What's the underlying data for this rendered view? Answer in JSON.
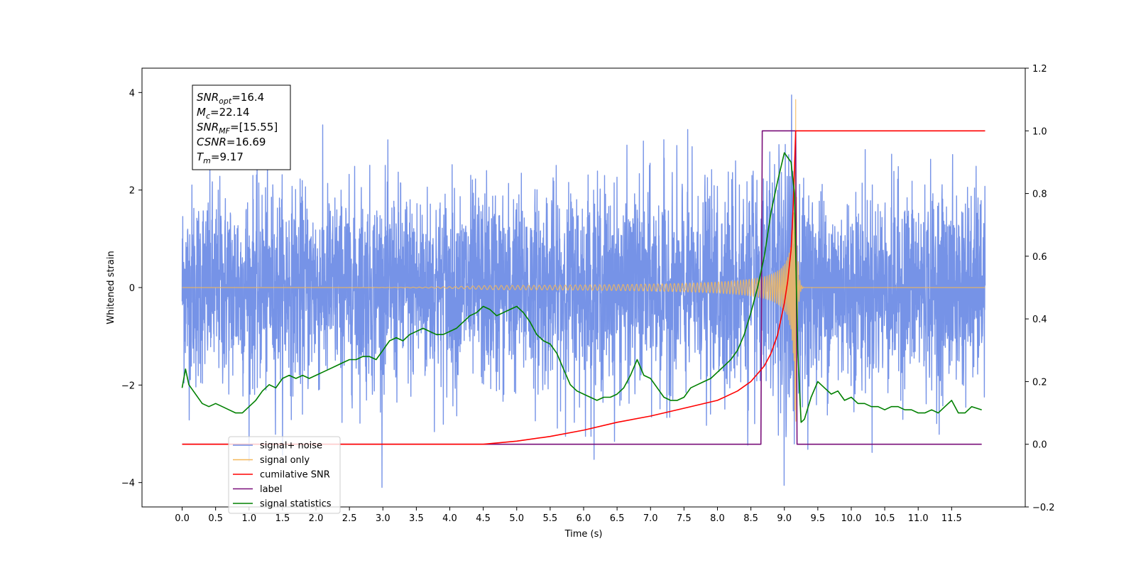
{
  "chart_data": {
    "type": "line",
    "xlabel": "Time (s)",
    "ylabel": "Whitened strain",
    "xlim": [
      -0.6,
      12.6
    ],
    "ylim": [
      -4.5,
      4.5
    ],
    "ylim_right": [
      -0.2,
      1.2
    ],
    "x_ticks": [
      "0.0",
      "0.5",
      "1.0",
      "1.5",
      "2.0",
      "2.5",
      "3.0",
      "3.5",
      "4.0",
      "4.5",
      "5.0",
      "5.5",
      "6.0",
      "6.5",
      "7.0",
      "7.5",
      "8.0",
      "8.5",
      "9.0",
      "9.5",
      "10.0",
      "10.5",
      "11.0",
      "11.5"
    ],
    "y_ticks_left": [
      "4",
      "2",
      "0",
      "−2",
      "−4"
    ],
    "y_ticks_right": [
      "1.2",
      "1.0",
      "0.8",
      "0.6",
      "0.4",
      "0.2",
      "0.0",
      "−0.2"
    ],
    "legend_position": "lower-left",
    "annotation": {
      "lines": [
        {
          "sym": "SNR",
          "sub": "opt",
          "val": "=16.4"
        },
        {
          "sym": "M",
          "sub": "c",
          "val": "=22.14"
        },
        {
          "sym": "SNR",
          "sub": "MF",
          "val": "=[15.55]"
        },
        {
          "sym": "CSNR",
          "sub": "",
          "val": "=16.69"
        },
        {
          "sym": "T",
          "sub": "m",
          "val": "=9.17"
        }
      ]
    },
    "series": [
      {
        "name": "signal+ noise",
        "color": "#6f8de6",
        "axis": "left",
        "kind": "noise",
        "x_range": [
          0.0,
          12.0
        ],
        "amplitude_sigma": 1.0,
        "peak_range": [
          -4.1,
          4.1
        ]
      },
      {
        "name": "signal only",
        "color": "#f5b85a",
        "axis": "left",
        "kind": "chirp",
        "x_range": [
          0.0,
          12.0
        ],
        "merger_time": 9.17,
        "peak_amplitude": 4.0,
        "ringdown_amplitude": -3.4
      },
      {
        "name": "cumilative SNR",
        "color": "#ff0000",
        "axis": "right",
        "x": [
          0.0,
          4.5,
          5.0,
          5.5,
          6.0,
          6.5,
          7.0,
          7.5,
          8.0,
          8.3,
          8.5,
          8.7,
          8.8,
          8.9,
          9.0,
          9.05,
          9.1,
          9.13,
          9.15,
          9.17,
          9.2,
          12.0
        ],
        "y": [
          0.0,
          0.0,
          0.01,
          0.025,
          0.045,
          0.07,
          0.09,
          0.115,
          0.14,
          0.17,
          0.2,
          0.25,
          0.29,
          0.35,
          0.45,
          0.52,
          0.62,
          0.75,
          0.88,
          1.0,
          1.0,
          1.0
        ]
      },
      {
        "name": "label",
        "color": "#7a0f7a",
        "axis": "right",
        "x": [
          0.0,
          8.65,
          8.67,
          9.17,
          9.19,
          11.95
        ],
        "y": [
          0.0,
          0.0,
          1.0,
          1.0,
          0.0,
          0.0
        ]
      },
      {
        "name": "signal statistics",
        "color": "#008000",
        "axis": "right",
        "x": [
          0.0,
          0.05,
          0.1,
          0.2,
          0.3,
          0.4,
          0.5,
          0.6,
          0.7,
          0.8,
          0.9,
          1.0,
          1.1,
          1.2,
          1.3,
          1.4,
          1.5,
          1.6,
          1.7,
          1.8,
          1.9,
          2.0,
          2.1,
          2.2,
          2.3,
          2.4,
          2.5,
          2.6,
          2.7,
          2.8,
          2.9,
          3.0,
          3.1,
          3.2,
          3.3,
          3.4,
          3.5,
          3.6,
          3.7,
          3.8,
          3.9,
          4.0,
          4.1,
          4.2,
          4.3,
          4.4,
          4.5,
          4.6,
          4.7,
          4.8,
          4.9,
          5.0,
          5.1,
          5.2,
          5.3,
          5.4,
          5.5,
          5.6,
          5.7,
          5.8,
          5.9,
          6.0,
          6.1,
          6.2,
          6.3,
          6.4,
          6.5,
          6.6,
          6.7,
          6.8,
          6.9,
          7.0,
          7.1,
          7.2,
          7.3,
          7.4,
          7.5,
          7.6,
          7.7,
          7.8,
          7.9,
          8.0,
          8.1,
          8.2,
          8.3,
          8.4,
          8.5,
          8.6,
          8.7,
          8.8,
          8.9,
          9.0,
          9.1,
          9.15,
          9.2,
          9.25,
          9.3,
          9.4,
          9.5,
          9.6,
          9.7,
          9.8,
          9.9,
          10.0,
          10.1,
          10.2,
          10.3,
          10.4,
          10.5,
          10.6,
          10.7,
          10.8,
          10.9,
          11.0,
          11.1,
          11.2,
          11.3,
          11.4,
          11.5,
          11.6,
          11.7,
          11.8,
          11.95
        ],
        "y": [
          0.18,
          0.24,
          0.19,
          0.16,
          0.13,
          0.12,
          0.13,
          0.12,
          0.11,
          0.1,
          0.1,
          0.12,
          0.14,
          0.17,
          0.19,
          0.18,
          0.21,
          0.22,
          0.21,
          0.22,
          0.21,
          0.22,
          0.23,
          0.24,
          0.25,
          0.26,
          0.27,
          0.27,
          0.28,
          0.28,
          0.27,
          0.3,
          0.33,
          0.34,
          0.33,
          0.35,
          0.36,
          0.37,
          0.36,
          0.35,
          0.35,
          0.36,
          0.37,
          0.39,
          0.41,
          0.42,
          0.44,
          0.43,
          0.41,
          0.42,
          0.43,
          0.44,
          0.42,
          0.39,
          0.35,
          0.33,
          0.32,
          0.29,
          0.24,
          0.19,
          0.17,
          0.16,
          0.15,
          0.14,
          0.15,
          0.15,
          0.16,
          0.18,
          0.22,
          0.27,
          0.22,
          0.21,
          0.18,
          0.15,
          0.14,
          0.14,
          0.15,
          0.18,
          0.19,
          0.2,
          0.21,
          0.23,
          0.25,
          0.27,
          0.3,
          0.35,
          0.42,
          0.5,
          0.6,
          0.74,
          0.84,
          0.93,
          0.9,
          0.8,
          0.3,
          0.07,
          0.08,
          0.15,
          0.2,
          0.18,
          0.16,
          0.17,
          0.14,
          0.15,
          0.13,
          0.13,
          0.12,
          0.12,
          0.11,
          0.12,
          0.12,
          0.11,
          0.11,
          0.1,
          0.1,
          0.11,
          0.1,
          0.12,
          0.14,
          0.1,
          0.1,
          0.12,
          0.11
        ]
      }
    ]
  }
}
